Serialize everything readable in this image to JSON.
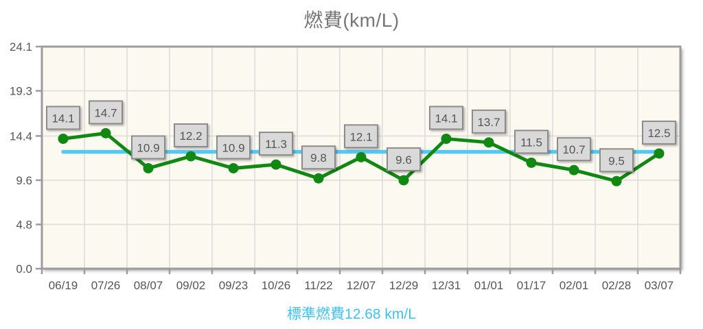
{
  "page": {
    "title": "燃費(km/L)",
    "standard_label": "標準燃費12.68 km/L"
  },
  "chart_data": {
    "type": "line",
    "title": "燃費(km/L)",
    "x": [
      "06/19",
      "07/26",
      "08/07",
      "09/02",
      "09/23",
      "10/26",
      "11/22",
      "12/07",
      "12/29",
      "12/31",
      "01/01",
      "01/17",
      "02/01",
      "02/28",
      "03/07"
    ],
    "series": [
      {
        "name": "燃費",
        "values": [
          14.1,
          14.7,
          10.9,
          12.2,
          10.9,
          11.3,
          9.8,
          12.1,
          9.6,
          14.1,
          13.7,
          11.5,
          10.7,
          9.5,
          12.5
        ]
      }
    ],
    "data_labels": [
      "14.1",
      "14.7",
      "10.9",
      "12.2",
      "10.9",
      "11.3",
      "9.8",
      "12.1",
      "9.6",
      "14.1",
      "13.7",
      "11.5",
      "10.7",
      "9.5",
      "12.5"
    ],
    "standard_line": {
      "label": "標準燃費12.68 km/L",
      "value": 12.68
    },
    "ylim": [
      0,
      24.1
    ],
    "yticks": [
      0.0,
      4.8,
      9.6,
      14.4,
      19.3,
      24.1
    ],
    "ytick_labels": [
      "0.0",
      "4.8",
      "9.6",
      "14.4",
      "19.3",
      "24.1"
    ],
    "grid": true,
    "legend_position": "bottom",
    "colors": {
      "series_green": "#118811",
      "standard_blue": "#55c8f2",
      "legend_blue": "#3ec2f2",
      "plot_background": "#fcfaf0",
      "grid_line": "#dcdcdc",
      "plot_border": "#9c9c9c",
      "label_box_fill": "#d9d9d9",
      "label_box_border": "#8c8c8c",
      "label_text": "#555555",
      "title_text": "#777777"
    }
  }
}
